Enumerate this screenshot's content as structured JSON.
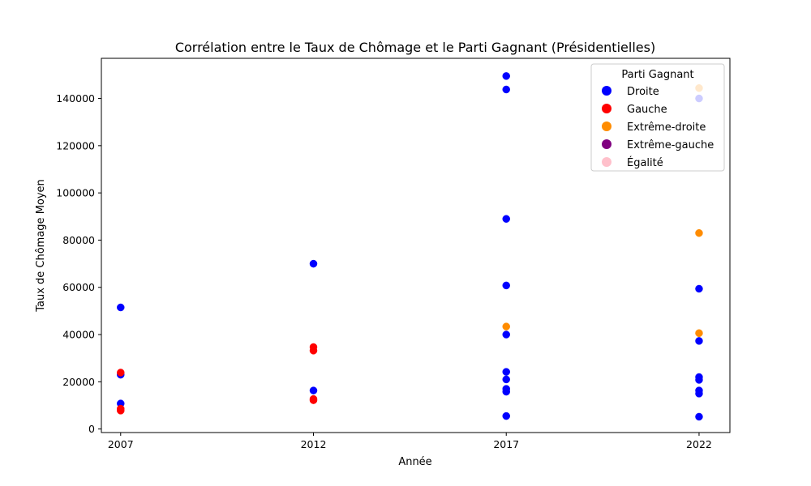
{
  "chart_data": {
    "type": "scatter",
    "title": "Corrélation entre le Taux de Chômage et le Parti Gagnant (Présidentielles)",
    "xlabel": "Année",
    "ylabel": "Taux de Chômage Moyen",
    "xlim": [
      2006.5,
      2022.8
    ],
    "ylim": [
      -1500,
      157000
    ],
    "x_ticks": [
      "2007",
      "2012",
      "2017",
      "2022"
    ],
    "y_ticks": [
      "0",
      "20000",
      "40000",
      "60000",
      "80000",
      "100000",
      "120000",
      "140000"
    ],
    "grid": false,
    "legend": {
      "title": "Parti Gagnant",
      "placement": "top-right",
      "entries": [
        "Droite",
        "Gauche",
        "Extrême-droite",
        "Extrême-gauche",
        "Égalité"
      ]
    },
    "series": [
      {
        "name": "Droite",
        "color": "#0000ff",
        "points": [
          {
            "x": 2007,
            "y": 51500
          },
          {
            "x": 2007,
            "y": 23000
          },
          {
            "x": 2007,
            "y": 10800
          },
          {
            "x": 2012,
            "y": 70000
          },
          {
            "x": 2012,
            "y": 16300
          },
          {
            "x": 2017,
            "y": 149500
          },
          {
            "x": 2017,
            "y": 143800
          },
          {
            "x": 2017,
            "y": 89000
          },
          {
            "x": 2017,
            "y": 60800
          },
          {
            "x": 2017,
            "y": 40000
          },
          {
            "x": 2017,
            "y": 24200
          },
          {
            "x": 2017,
            "y": 21000
          },
          {
            "x": 2017,
            "y": 17000
          },
          {
            "x": 2017,
            "y": 15800
          },
          {
            "x": 2017,
            "y": 5500
          },
          {
            "x": 2022,
            "y": 140000
          },
          {
            "x": 2022,
            "y": 59400
          },
          {
            "x": 2022,
            "y": 37300
          },
          {
            "x": 2022,
            "y": 22000
          },
          {
            "x": 2022,
            "y": 20800
          },
          {
            "x": 2022,
            "y": 16300
          },
          {
            "x": 2022,
            "y": 15000
          },
          {
            "x": 2022,
            "y": 5200
          }
        ]
      },
      {
        "name": "Gauche",
        "color": "#ff0000",
        "points": [
          {
            "x": 2007,
            "y": 23900
          },
          {
            "x": 2007,
            "y": 8600
          },
          {
            "x": 2007,
            "y": 7800
          },
          {
            "x": 2012,
            "y": 34700
          },
          {
            "x": 2012,
            "y": 33200
          },
          {
            "x": 2012,
            "y": 12700
          },
          {
            "x": 2012,
            "y": 12200
          }
        ]
      },
      {
        "name": "Extrême-droite",
        "color": "#ff8c00",
        "points": [
          {
            "x": 2017,
            "y": 43400
          },
          {
            "x": 2022,
            "y": 144400
          },
          {
            "x": 2022,
            "y": 83000
          },
          {
            "x": 2022,
            "y": 40600
          }
        ]
      },
      {
        "name": "Extrême-gauche",
        "color": "#800080",
        "points": []
      },
      {
        "name": "Égalité",
        "color": "#ffc0cb",
        "points": []
      }
    ]
  }
}
